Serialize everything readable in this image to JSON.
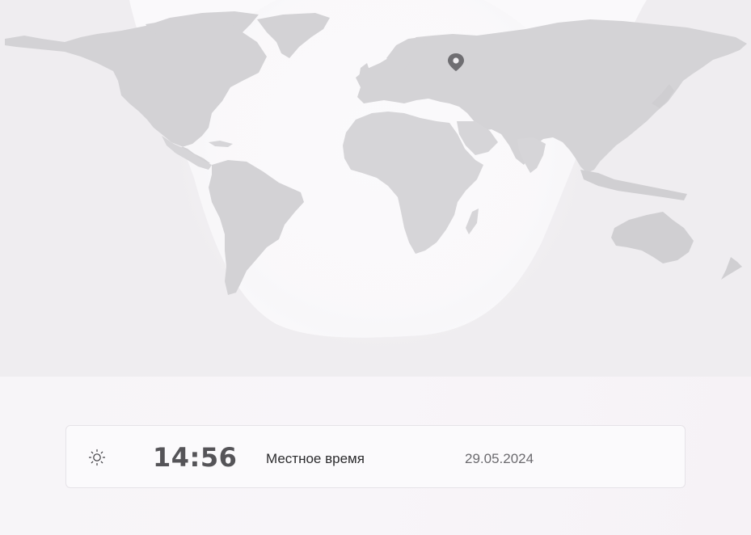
{
  "map": {
    "location_marker": "location-pin-icon",
    "day_region_icon": "daylight-region"
  },
  "time_card": {
    "icon": "sun-icon",
    "time": "14:56",
    "label": "Местное время",
    "date": "29.05.2024"
  },
  "colors": {
    "land": "#d6d5d8",
    "land_dark": "#c9c8cb",
    "night": "#e9e7ea",
    "pin": "#6f6e72",
    "time_text": "#555458"
  }
}
